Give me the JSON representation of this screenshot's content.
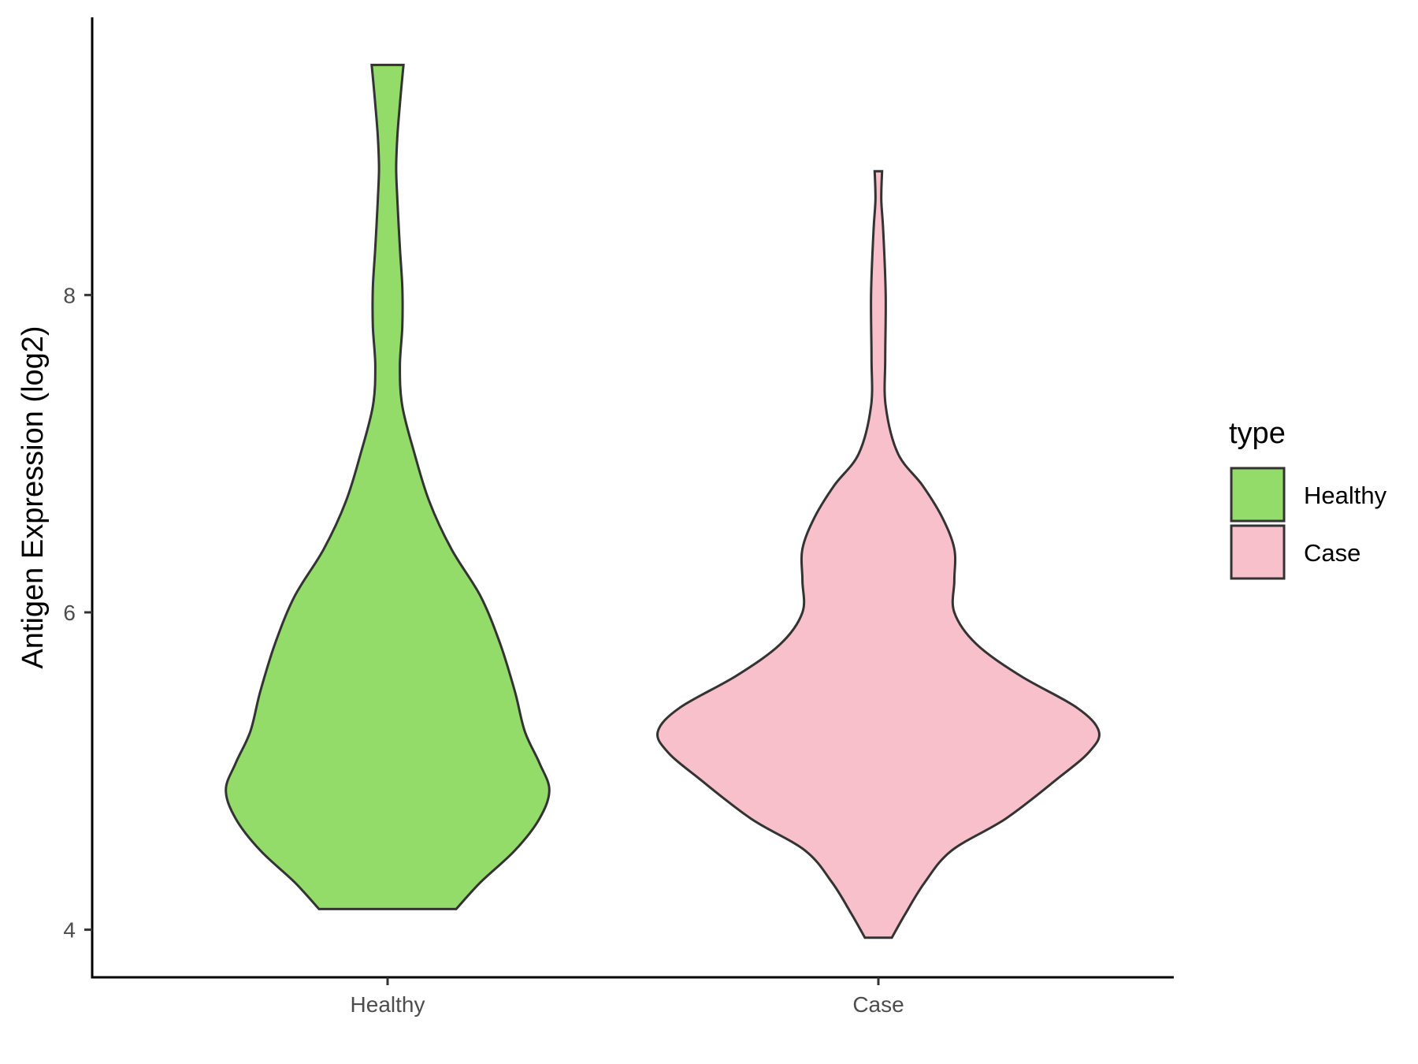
{
  "chart_data": {
    "type": "violin",
    "ylabel": "Antigen Expression (log2)",
    "xlabel": "",
    "categories": [
      "Healthy",
      "Case"
    ],
    "ylim": [
      3.7,
      9.75
    ],
    "yticks": [
      4,
      6,
      8
    ],
    "grid": false,
    "legend": {
      "title": "type",
      "placement": "right",
      "entries": [
        {
          "label": "Healthy",
          "color": "#93DC6A"
        },
        {
          "label": "Case",
          "color": "#F8C0CB"
        }
      ]
    },
    "series": [
      {
        "category": "Healthy",
        "color": "#93DC6A",
        "min": 4.13,
        "max": 9.45,
        "profile": [
          [
            4.13,
            0.28
          ],
          [
            4.3,
            0.38
          ],
          [
            4.5,
            0.52
          ],
          [
            4.7,
            0.62
          ],
          [
            4.88,
            0.66
          ],
          [
            5.05,
            0.62
          ],
          [
            5.25,
            0.56
          ],
          [
            5.5,
            0.52
          ],
          [
            5.8,
            0.46
          ],
          [
            6.1,
            0.38
          ],
          [
            6.4,
            0.26
          ],
          [
            6.7,
            0.17
          ],
          [
            7.0,
            0.11
          ],
          [
            7.3,
            0.06
          ],
          [
            7.55,
            0.05
          ],
          [
            7.8,
            0.06
          ],
          [
            8.05,
            0.06
          ],
          [
            8.3,
            0.05
          ],
          [
            8.6,
            0.04
          ],
          [
            8.8,
            0.035
          ],
          [
            9.0,
            0.04
          ],
          [
            9.2,
            0.05
          ],
          [
            9.45,
            0.065
          ]
        ]
      },
      {
        "category": "Case",
        "color": "#F8C0CB",
        "min": 3.95,
        "max": 8.78,
        "profile": [
          [
            3.95,
            0.055
          ],
          [
            4.1,
            0.11
          ],
          [
            4.3,
            0.19
          ],
          [
            4.5,
            0.3
          ],
          [
            4.7,
            0.52
          ],
          [
            4.95,
            0.73
          ],
          [
            5.12,
            0.86
          ],
          [
            5.25,
            0.9
          ],
          [
            5.4,
            0.81
          ],
          [
            5.6,
            0.58
          ],
          [
            5.8,
            0.4
          ],
          [
            6.0,
            0.31
          ],
          [
            6.2,
            0.31
          ],
          [
            6.4,
            0.31
          ],
          [
            6.6,
            0.26
          ],
          [
            6.8,
            0.18
          ],
          [
            7.0,
            0.08
          ],
          [
            7.3,
            0.03
          ],
          [
            7.6,
            0.028
          ],
          [
            8.0,
            0.03
          ],
          [
            8.4,
            0.02
          ],
          [
            8.6,
            0.012
          ],
          [
            8.78,
            0.015
          ]
        ]
      }
    ]
  }
}
